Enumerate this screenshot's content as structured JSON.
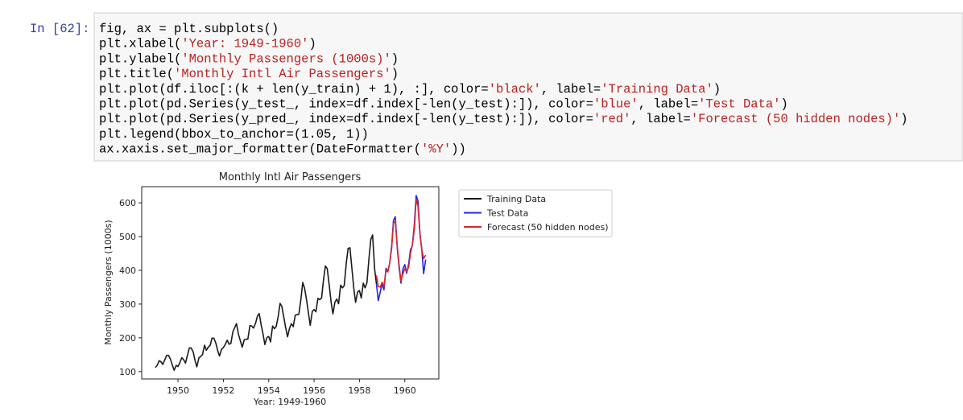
{
  "prompt": "In [62]:",
  "code": {
    "lines": [
      [
        "fig, ax = plt.subplots()"
      ],
      [
        "plt.xlabel(",
        {
          "text": "'Year: 1949-1960'",
          "color": "#ba2121"
        },
        ")"
      ],
      [
        "plt.ylabel(",
        {
          "text": "'Monthly Passengers (1000s)'",
          "color": "#ba2121"
        },
        ")"
      ],
      [
        "plt.title(",
        {
          "text": "'Monthly Intl Air Passengers'",
          "color": "#ba2121"
        },
        ")"
      ],
      [
        "plt.plot(df.iloc[:(k + len(y_train) + 1), :], color=",
        {
          "text": "'black'",
          "color": "#ba2121"
        },
        ", label=",
        {
          "text": "'Training Data'",
          "color": "#ba2121"
        },
        ")"
      ],
      [
        "plt.plot(pd.Series(y_test_, index=df.index[-len(y_test):]), color=",
        {
          "text": "'blue'",
          "color": "#ba2121"
        },
        ", label=",
        {
          "text": "'Test Data'",
          "color": "#ba2121"
        },
        ")"
      ],
      [
        "plt.plot(pd.Series(y_pred_, index=df.index[-len(y_test):]), color=",
        {
          "text": "'red'",
          "color": "#ba2121"
        },
        ", label=",
        {
          "text": "'Forecast (50 hidden nodes)'",
          "color": "#ba2121"
        },
        ")"
      ],
      [
        "plt.legend(bbox_to_anchor=(1.05, 1))"
      ],
      [
        "ax.xaxis.set_major_formatter(DateFormatter(",
        {
          "text": "'%Y'",
          "color": "#ba2121"
        },
        "))"
      ]
    ]
  },
  "chart_data": {
    "type": "line",
    "title": "Monthly Intl Air Passengers",
    "xlabel": "Year: 1949-1960",
    "ylabel": "Monthly Passengers (1000s)",
    "xlim": [
      1948.4,
      1961.5
    ],
    "ylim": [
      78,
      648
    ],
    "xticks": [
      1950,
      1952,
      1954,
      1956,
      1958,
      1960
    ],
    "yticks": [
      100,
      200,
      300,
      400,
      500,
      600
    ],
    "legend": "outside-right",
    "series": [
      {
        "name": "Training Data",
        "color": "#1a1a1a",
        "x": [
          1949,
          1949.08,
          1949.17,
          1949.25,
          1949.33,
          1949.42,
          1949.5,
          1949.58,
          1949.67,
          1949.75,
          1949.83,
          1949.92,
          1950,
          1950.08,
          1950.17,
          1950.25,
          1950.33,
          1950.42,
          1950.5,
          1950.58,
          1950.67,
          1950.75,
          1950.83,
          1950.92,
          1951,
          1951.08,
          1951.17,
          1951.25,
          1951.33,
          1951.42,
          1951.5,
          1951.58,
          1951.67,
          1951.75,
          1951.83,
          1951.92,
          1952,
          1952.08,
          1952.17,
          1952.25,
          1952.33,
          1952.42,
          1952.5,
          1952.58,
          1952.67,
          1952.75,
          1952.83,
          1952.92,
          1953,
          1953.08,
          1953.17,
          1953.25,
          1953.33,
          1953.42,
          1953.5,
          1953.58,
          1953.67,
          1953.75,
          1953.83,
          1953.92,
          1954,
          1954.08,
          1954.17,
          1954.25,
          1954.33,
          1954.42,
          1954.5,
          1954.58,
          1954.67,
          1954.75,
          1954.83,
          1954.92,
          1955,
          1955.08,
          1955.17,
          1955.25,
          1955.33,
          1955.42,
          1955.5,
          1955.58,
          1955.67,
          1955.75,
          1955.83,
          1955.92,
          1956,
          1956.08,
          1956.17,
          1956.25,
          1956.33,
          1956.42,
          1956.5,
          1956.58,
          1956.67,
          1956.75,
          1956.83,
          1956.92,
          1957,
          1957.08,
          1957.17,
          1957.25,
          1957.33,
          1957.42,
          1957.5,
          1957.58,
          1957.67,
          1957.75,
          1957.83,
          1957.92,
          1958,
          1958.08,
          1958.17,
          1958.25,
          1958.33,
          1958.42,
          1958.5,
          1958.58,
          1958.67,
          1958.75
        ],
        "values": [
          112,
          118,
          132,
          129,
          121,
          135,
          148,
          148,
          136,
          119,
          104,
          118,
          115,
          126,
          141,
          135,
          125,
          149,
          170,
          170,
          158,
          133,
          114,
          140,
          145,
          150,
          178,
          163,
          172,
          178,
          199,
          199,
          184,
          162,
          146,
          166,
          171,
          180,
          193,
          181,
          183,
          218,
          230,
          242,
          209,
          191,
          172,
          194,
          196,
          196,
          236,
          235,
          229,
          243,
          264,
          272,
          237,
          211,
          180,
          201,
          204,
          188,
          235,
          227,
          234,
          264,
          302,
          293,
          259,
          229,
          203,
          229,
          242,
          233,
          267,
          269,
          270,
          315,
          364,
          347,
          312,
          274,
          237,
          278,
          284,
          277,
          317,
          313,
          318,
          374,
          413,
          405,
          355,
          306,
          271,
          306,
          315,
          301,
          356,
          348,
          355,
          422,
          465,
          467,
          404,
          347,
          305,
          336,
          340,
          318,
          362,
          348,
          363,
          435,
          491,
          505,
          404,
          359
        ]
      },
      {
        "name": "Test Data",
        "color": "#2424e6",
        "x": [
          1958.75,
          1958.83,
          1958.92,
          1959,
          1959.08,
          1959.17,
          1959.25,
          1959.33,
          1959.42,
          1959.5,
          1959.58,
          1959.67,
          1959.75,
          1959.83,
          1959.92,
          1960,
          1960.08,
          1960.17,
          1960.25,
          1960.33,
          1960.42,
          1960.5,
          1960.58,
          1960.67,
          1960.75,
          1960.83,
          1960.92
        ],
        "values": [
          359,
          310,
          337,
          360,
          342,
          406,
          396,
          420,
          472,
          548,
          559,
          463,
          407,
          362,
          405,
          417,
          391,
          419,
          461,
          472,
          535,
          622,
          606,
          508,
          461,
          390,
          432
        ]
      },
      {
        "name": "Forecast (50 hidden nodes)",
        "color": "#d9262b",
        "x": [
          1958.75,
          1958.83,
          1958.92,
          1959,
          1959.08,
          1959.17,
          1959.25,
          1959.33,
          1959.42,
          1959.5,
          1959.58,
          1959.67,
          1959.75,
          1959.83,
          1959.92,
          1960,
          1960.08,
          1960.17,
          1960.25,
          1960.33,
          1960.42,
          1960.5,
          1960.58,
          1960.67,
          1960.75,
          1960.83,
          1960.92
        ],
        "values": [
          385,
          352,
          350,
          365,
          352,
          400,
          395,
          420,
          465,
          540,
          545,
          470,
          415,
          368,
          390,
          405,
          395,
          410,
          450,
          475,
          520,
          610,
          590,
          505,
          460,
          435,
          445
        ]
      }
    ]
  }
}
